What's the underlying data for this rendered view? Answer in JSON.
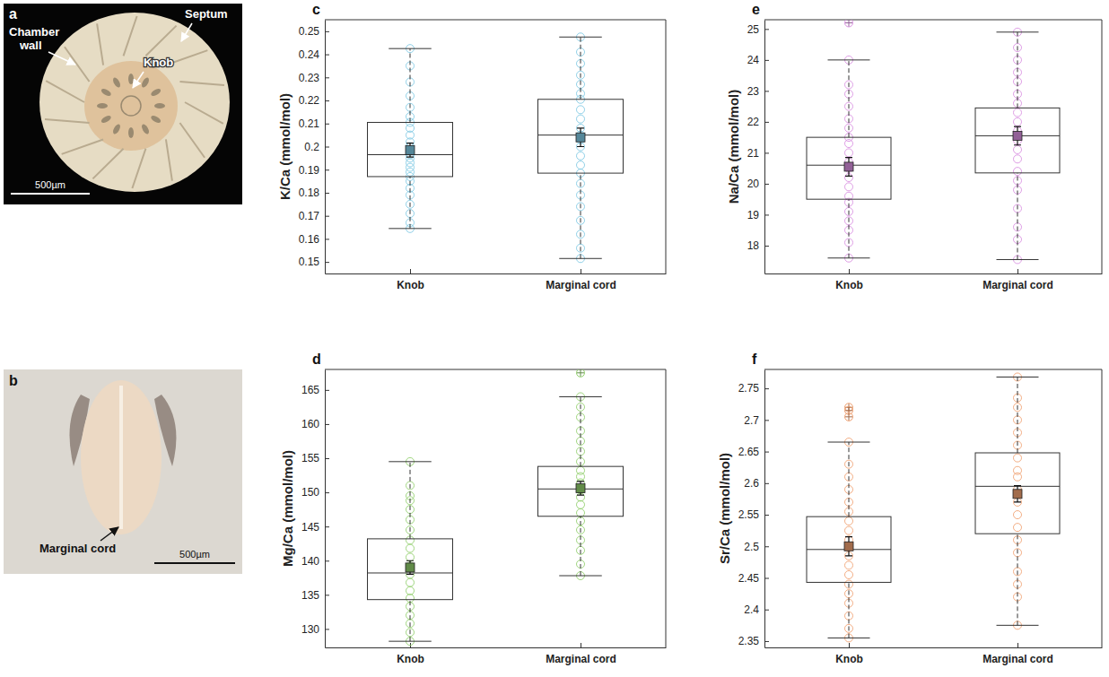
{
  "images": [
    {
      "letter": "a",
      "labels": [
        "Chamber wall",
        "Septum",
        "Knob"
      ],
      "scale_bar": "500µm"
    },
    {
      "letter": "b",
      "labels": [
        "Marginal cord"
      ],
      "scale_bar": "500µm"
    }
  ],
  "chart_data": [
    {
      "type": "box",
      "letter": "c",
      "y_label": "K/Ca (mmol/mol)",
      "categories": [
        "Knob",
        "Marginal cord"
      ],
      "color": "#7ec8e3",
      "ylim": [
        0.145,
        0.255
      ],
      "yticks": [
        0.15,
        0.16,
        0.17,
        0.18,
        0.19,
        0.2,
        0.21,
        0.22,
        0.23,
        0.24,
        0.25
      ],
      "boxes": [
        {
          "whisker_low": 0.1645,
          "q1": 0.187,
          "median": 0.1965,
          "q3": 0.2105,
          "whisker_high": 0.2425,
          "mean": 0.1985,
          "mean_error": 0.003,
          "outliers": []
        },
        {
          "whisker_low": 0.1515,
          "q1": 0.1885,
          "median": 0.205,
          "q3": 0.2205,
          "whisker_high": 0.2475,
          "mean": 0.204,
          "mean_error": 0.004,
          "outliers": []
        }
      ],
      "values": [
        [
          0.1645,
          0.167,
          0.171,
          0.175,
          0.179,
          0.182,
          0.185,
          0.187,
          0.189,
          0.191,
          0.193,
          0.195,
          0.1965,
          0.198,
          0.2,
          0.202,
          0.205,
          0.208,
          0.2105,
          0.213,
          0.217,
          0.222,
          0.228,
          0.235,
          0.2425
        ],
        [
          0.1515,
          0.156,
          0.162,
          0.168,
          0.174,
          0.179,
          0.184,
          0.1885,
          0.192,
          0.196,
          0.2,
          0.203,
          0.205,
          0.208,
          0.212,
          0.216,
          0.2205,
          0.223,
          0.227,
          0.231,
          0.236,
          0.241,
          0.2475
        ]
      ]
    },
    {
      "type": "box",
      "letter": "d",
      "y_label": "Mg/Ca (mmol/mol)",
      "categories": [
        "Knob",
        "Marginal cord"
      ],
      "color": "#8fce6a",
      "ylim": [
        127.3,
        168
      ],
      "yticks": [
        130,
        135,
        140,
        145,
        150,
        155,
        160,
        165
      ],
      "boxes": [
        {
          "whisker_low": 128.2,
          "q1": 134.3,
          "median": 138.2,
          "q3": 143.2,
          "whisker_high": 154.5,
          "mean": 139,
          "mean_error": 1,
          "outliers": []
        },
        {
          "whisker_low": 137.8,
          "q1": 146.5,
          "median": 150.5,
          "q3": 153.8,
          "whisker_high": 164,
          "mean": 150.6,
          "mean_error": 1,
          "outliers": [
            167.5
          ]
        }
      ],
      "values": [
        [
          128.2,
          129.5,
          130.8,
          132,
          133.3,
          134.5,
          135.6,
          136.8,
          138,
          139.2,
          140.5,
          141.8,
          143,
          144.5,
          146,
          147.5,
          148.8,
          149.5,
          151,
          154.5
        ],
        [
          137.8,
          139.5,
          141.5,
          143,
          144.5,
          145.8,
          147,
          148.2,
          149.3,
          150.4,
          151.4,
          152.3,
          153.2,
          154.5,
          156,
          157.5,
          159,
          161,
          162.5,
          164
        ]
      ]
    },
    {
      "type": "box",
      "letter": "e",
      "y_label": "Na/Ca (mmol/mol)",
      "categories": [
        "Knob",
        "Marginal cord"
      ],
      "color": "#d88ee0",
      "ylim": [
        17.1,
        25.3
      ],
      "yticks": [
        18,
        19,
        20,
        21,
        22,
        23,
        24,
        25
      ],
      "boxes": [
        {
          "whisker_low": 17.6,
          "q1": 19.5,
          "median": 20.6,
          "q3": 21.5,
          "whisker_high": 24,
          "mean": 20.55,
          "mean_error": 0.3,
          "outliers": [
            25.2
          ]
        },
        {
          "whisker_low": 17.55,
          "q1": 20.35,
          "median": 21.55,
          "q3": 22.45,
          "whisker_high": 24.9,
          "mean": 21.55,
          "mean_error": 0.3,
          "outliers": []
        }
      ],
      "values": [
        [
          17.6,
          18.1,
          18.5,
          18.8,
          19.1,
          19.4,
          19.6,
          19.9,
          20.2,
          20.5,
          20.7,
          21,
          21.3,
          21.5,
          21.8,
          22.1,
          22.5,
          22.9,
          23.2,
          24
        ],
        [
          17.55,
          18.2,
          18.6,
          19.2,
          19.8,
          20.1,
          20.4,
          20.8,
          21.1,
          21.4,
          21.7,
          22,
          22.3,
          22.6,
          22.9,
          23.3,
          23.6,
          24,
          24.4,
          24.9
        ]
      ]
    },
    {
      "type": "box",
      "letter": "f",
      "y_label": "Sr/Ca (mmol/mol)",
      "categories": [
        "Knob",
        "Marginal cord"
      ],
      "color": "#f0a070",
      "ylim": [
        2.34,
        2.78
      ],
      "yticks": [
        2.35,
        2.4,
        2.45,
        2.5,
        2.55,
        2.6,
        2.65,
        2.7,
        2.75
      ],
      "boxes": [
        {
          "whisker_low": 2.355,
          "q1": 2.443,
          "median": 2.495,
          "q3": 2.547,
          "whisker_high": 2.665,
          "mean": 2.5,
          "mean_error": 0.015,
          "outliers": [
            2.72,
            2.715,
            2.705
          ]
        },
        {
          "whisker_low": 2.375,
          "q1": 2.52,
          "median": 2.595,
          "q3": 2.648,
          "whisker_high": 2.768,
          "mean": 2.583,
          "mean_error": 0.013,
          "outliers": []
        }
      ],
      "values": [
        [
          2.355,
          2.37,
          2.39,
          2.41,
          2.425,
          2.44,
          2.455,
          2.47,
          2.485,
          2.5,
          2.51,
          2.525,
          2.54,
          2.555,
          2.57,
          2.59,
          2.61,
          2.63,
          2.665
        ],
        [
          2.375,
          2.42,
          2.44,
          2.46,
          2.49,
          2.51,
          2.53,
          2.55,
          2.57,
          2.59,
          2.61,
          2.62,
          2.64,
          2.66,
          2.68,
          2.7,
          2.72,
          2.735,
          2.768
        ]
      ]
    }
  ]
}
